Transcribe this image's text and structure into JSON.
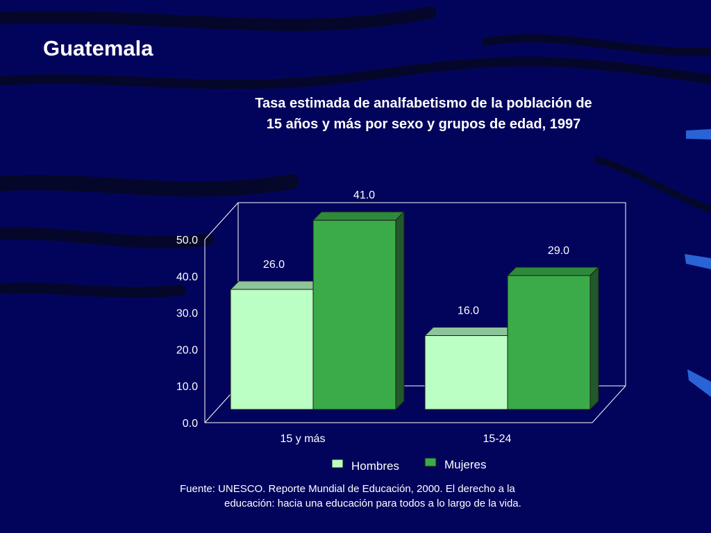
{
  "slide": {
    "title": "Guatemala",
    "colors": {
      "background": "#02045c",
      "stripe": "#070b24",
      "accent_tab": "#2a63d6"
    }
  },
  "chart_data": {
    "type": "bar",
    "title_lines": [
      "Tasa estimada de analfabetismo de la población de",
      "15 años y más por sexo y grupos de edad, 1997"
    ],
    "categories": [
      "15 y más",
      "15-24"
    ],
    "series": [
      {
        "name": "Hombres",
        "values": [
          26.0,
          16.0
        ],
        "labels": [
          "26.0",
          "16.0"
        ],
        "color": "#bbffc4",
        "top_color": "#8ec49a"
      },
      {
        "name": "Mujeres",
        "values": [
          41.0,
          29.0
        ],
        "labels": [
          "41.0",
          "29.0"
        ],
        "color": "#3aab48",
        "top_color": "#2e8a3a",
        "side_color": "#21592a"
      }
    ],
    "ylim": [
      0,
      50
    ],
    "ticks": [
      "0.0",
      "10.0",
      "20.0",
      "30.0",
      "40.0",
      "50.0"
    ],
    "grid": false,
    "style": "3d-box",
    "legend_position": "bottom"
  },
  "source": {
    "line1": "Fuente: UNESCO. Reporte Mundial de Educación, 2000. El derecho a la",
    "line2": "educación: hacia una educación para todos a lo largo de la vida."
  }
}
